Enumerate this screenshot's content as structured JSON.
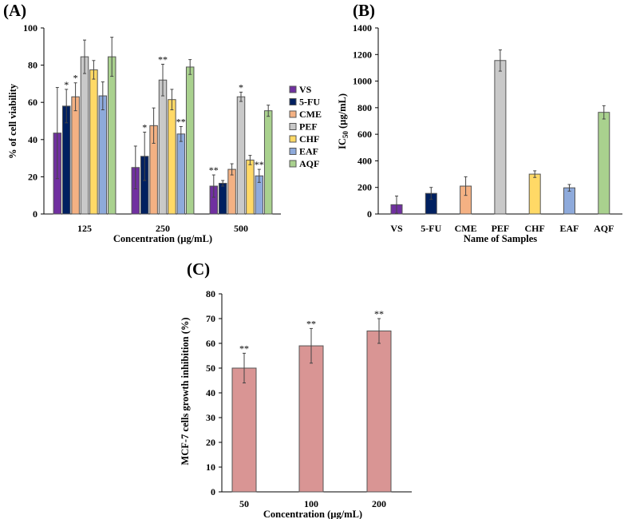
{
  "colors": {
    "VS": "#7030a0",
    "5-FU": "#002060",
    "CME": "#f4b183",
    "PEF": "#c9c9c9",
    "CHF": "#ffd966",
    "EAF": "#8eaadb",
    "AQF": "#a9d18e",
    "C": "#d99594"
  },
  "chart_data": [
    {
      "panel": "(A)",
      "type": "bar",
      "categories": [
        "125",
        "250",
        "500"
      ],
      "xlabel": "Concentration (µg/mL)",
      "ylabel": "% of cell viability",
      "ylim": [
        0,
        100
      ],
      "yticks": [
        "0",
        "20",
        "40",
        "60",
        "80",
        "100"
      ],
      "legend_position": "right",
      "series": [
        {
          "name": "VS",
          "values": [
            43.5,
            25,
            15
          ],
          "errors": [
            24.5,
            11.5,
            6
          ],
          "marks": [
            "",
            "",
            "**"
          ]
        },
        {
          "name": "5-FU",
          "values": [
            58,
            31,
            16.5
          ],
          "errors": [
            9,
            13,
            1.5
          ],
          "marks": [
            "*",
            "*",
            ""
          ]
        },
        {
          "name": "CME",
          "values": [
            63,
            47.5,
            24
          ],
          "errors": [
            7.5,
            9.5,
            3
          ],
          "marks": [
            "*",
            "",
            ""
          ]
        },
        {
          "name": "PEF",
          "values": [
            84.5,
            72,
            63
          ],
          "errors": [
            9,
            8.5,
            2.5
          ],
          "marks": [
            "",
            "**",
            "*"
          ]
        },
        {
          "name": "CHF",
          "values": [
            77.5,
            61.5,
            29
          ],
          "errors": [
            5,
            5.5,
            2.5
          ],
          "marks": [
            "",
            "",
            ""
          ]
        },
        {
          "name": "EAF",
          "values": [
            63.5,
            43,
            20.5
          ],
          "errors": [
            7.5,
            4,
            3.5
          ],
          "marks": [
            "",
            "**",
            "**"
          ]
        },
        {
          "name": "AQF",
          "values": [
            84.5,
            79,
            55.5
          ],
          "errors": [
            10.5,
            4,
            3
          ],
          "marks": [
            "",
            "",
            ""
          ]
        }
      ]
    },
    {
      "panel": "(B)",
      "type": "bar",
      "categories": [
        "VS",
        "5-FU",
        "CME",
        "PEF",
        "CHF",
        "EAF",
        "AQF"
      ],
      "values": [
        70,
        155,
        210,
        1155,
        300,
        197,
        765
      ],
      "errors": [
        65,
        45,
        70,
        80,
        25,
        25,
        50
      ],
      "xlabel": "Name of Samples",
      "ylabel_main": "IC",
      "ylabel_sub": "50",
      "ylabel_unit": " (µg/mL)",
      "ylim": [
        0,
        1400
      ],
      "yticks": [
        "0",
        "200",
        "400",
        "600",
        "800",
        "1000",
        "1200",
        "1400"
      ]
    },
    {
      "panel": "(C)",
      "type": "bar",
      "categories": [
        "50",
        "100",
        "200"
      ],
      "values": [
        50,
        59,
        65
      ],
      "errors": [
        6,
        7,
        5
      ],
      "marks": [
        "**",
        "**",
        "**"
      ],
      "xlabel": "Concentration (µg/mL)",
      "ylabel": "MCF-7 cells growth inhibition (%)",
      "ylim": [
        0,
        80
      ],
      "yticks": [
        "0",
        "10",
        "20",
        "30",
        "40",
        "50",
        "60",
        "70",
        "80"
      ]
    }
  ]
}
